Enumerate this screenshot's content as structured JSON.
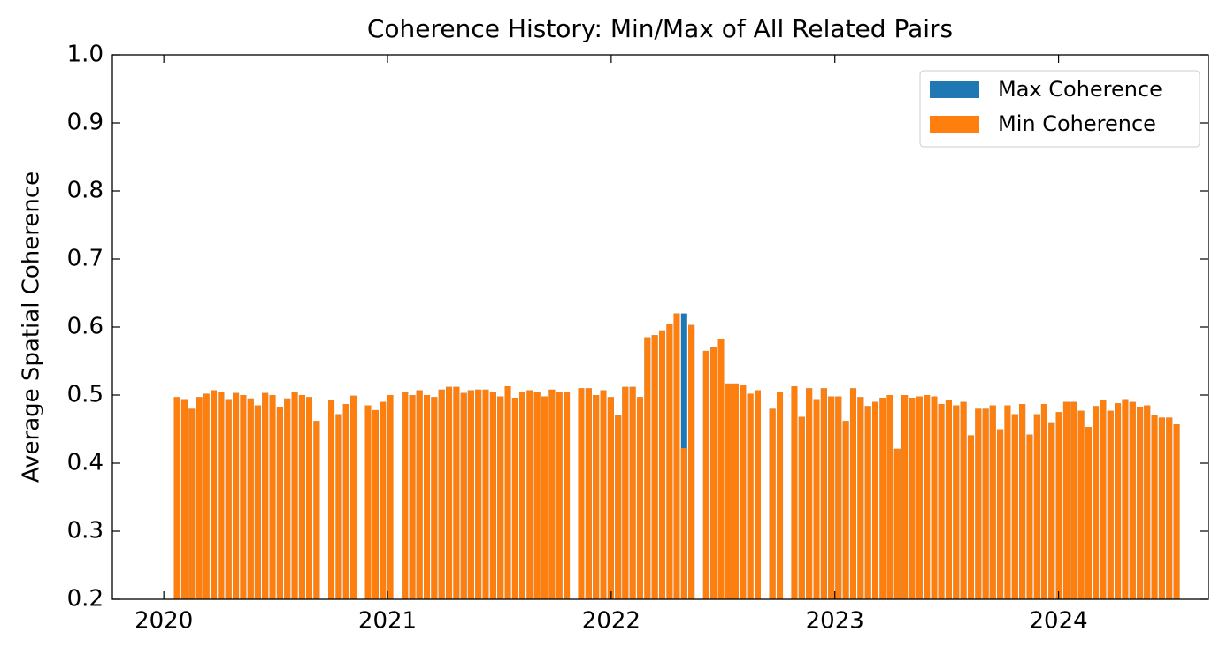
{
  "chart_data": {
    "type": "bar",
    "title": "Coherence History: Min/Max of All Related Pairs",
    "y_label": "Average Spatial Coherence",
    "x": [
      2020.059,
      2020.092,
      2020.125,
      2020.158,
      2020.19,
      2020.223,
      2020.256,
      2020.289,
      2020.322,
      2020.355,
      2020.388,
      2020.42,
      2020.453,
      2020.486,
      2020.519,
      2020.552,
      2020.585,
      2020.618,
      2020.65,
      2020.683,
      2020.749,
      2020.782,
      2020.815,
      2020.848,
      2020.913,
      2020.946,
      2020.979,
      2021.012,
      2021.078,
      2021.111,
      2021.143,
      2021.176,
      2021.209,
      2021.242,
      2021.275,
      2021.308,
      2021.341,
      2021.373,
      2021.406,
      2021.439,
      2021.472,
      2021.505,
      2021.538,
      2021.571,
      2021.603,
      2021.636,
      2021.669,
      2021.702,
      2021.735,
      2021.768,
      2021.801,
      2021.866,
      2021.899,
      2021.932,
      2021.965,
      2021.998,
      2022.031,
      2022.063,
      2022.096,
      2022.129,
      2022.162,
      2022.195,
      2022.228,
      2022.261,
      2022.293,
      2022.326,
      2022.359,
      2022.425,
      2022.458,
      2022.491,
      2022.524,
      2022.556,
      2022.589,
      2022.622,
      2022.655,
      2022.721,
      2022.754,
      2022.819,
      2022.852,
      2022.885,
      2022.918,
      2022.951,
      2022.984,
      2023.016,
      2023.049,
      2023.082,
      2023.115,
      2023.148,
      2023.181,
      2023.214,
      2023.246,
      2023.279,
      2023.312,
      2023.345,
      2023.378,
      2023.411,
      2023.444,
      2023.476,
      2023.509,
      2023.542,
      2023.575,
      2023.608,
      2023.641,
      2023.674,
      2023.706,
      2023.739,
      2023.772,
      2023.805,
      2023.838,
      2023.871,
      2023.904,
      2023.936,
      2023.969,
      2024.002,
      2024.035,
      2024.068,
      2024.101,
      2024.134,
      2024.166,
      2024.199,
      2024.232,
      2024.265,
      2024.298,
      2024.331,
      2024.364,
      2024.396,
      2024.429,
      2024.462,
      2024.495,
      2024.528
    ],
    "series": [
      {
        "name": "Max Coherence",
        "color": "#1f77b4",
        "values": [
          0.497,
          0.494,
          0.48,
          0.497,
          0.502,
          0.507,
          0.505,
          0.494,
          0.503,
          0.5,
          0.495,
          0.485,
          0.503,
          0.5,
          0.483,
          0.495,
          0.505,
          0.5,
          0.497,
          0.462,
          0.492,
          0.472,
          0.487,
          0.499,
          0.485,
          0.478,
          0.49,
          0.5,
          0.504,
          0.5,
          0.507,
          0.5,
          0.497,
          0.508,
          0.512,
          0.512,
          0.503,
          0.507,
          0.508,
          0.508,
          0.505,
          0.498,
          0.513,
          0.496,
          0.505,
          0.507,
          0.505,
          0.498,
          0.508,
          0.504,
          0.504,
          0.51,
          0.51,
          0.5,
          0.507,
          0.497,
          0.47,
          0.512,
          0.512,
          0.497,
          0.585,
          0.588,
          0.595,
          0.605,
          0.62,
          0.62,
          0.603,
          0.565,
          0.57,
          0.582,
          0.517,
          0.517,
          0.515,
          0.502,
          0.507,
          0.48,
          0.504,
          0.513,
          0.468,
          0.51,
          0.494,
          0.51,
          0.498,
          0.498,
          0.462,
          0.51,
          0.497,
          0.484,
          0.49,
          0.496,
          0.5,
          0.421,
          0.5,
          0.496,
          0.498,
          0.5,
          0.498,
          0.487,
          0.493,
          0.485,
          0.49,
          0.441,
          0.48,
          0.48,
          0.485,
          0.45,
          0.485,
          0.472,
          0.487,
          0.442,
          0.472,
          0.487,
          0.46,
          0.475,
          0.49,
          0.49,
          0.477,
          0.453,
          0.484,
          0.492,
          0.477,
          0.488,
          0.494,
          0.49,
          0.483,
          0.485,
          0.47,
          0.467,
          0.467,
          0.457
        ]
      },
      {
        "name": "Min Coherence",
        "color": "#ff7f0e",
        "values": [
          0.497,
          0.494,
          0.48,
          0.497,
          0.502,
          0.507,
          0.505,
          0.494,
          0.503,
          0.5,
          0.495,
          0.485,
          0.503,
          0.5,
          0.483,
          0.495,
          0.505,
          0.5,
          0.497,
          0.462,
          0.492,
          0.472,
          0.487,
          0.499,
          0.485,
          0.478,
          0.49,
          0.5,
          0.504,
          0.5,
          0.507,
          0.5,
          0.497,
          0.508,
          0.512,
          0.512,
          0.503,
          0.507,
          0.508,
          0.508,
          0.505,
          0.498,
          0.513,
          0.496,
          0.505,
          0.507,
          0.505,
          0.498,
          0.508,
          0.504,
          0.504,
          0.51,
          0.51,
          0.5,
          0.507,
          0.497,
          0.47,
          0.512,
          0.512,
          0.497,
          0.585,
          0.588,
          0.595,
          0.605,
          0.62,
          0.422,
          0.603,
          0.565,
          0.57,
          0.582,
          0.517,
          0.517,
          0.515,
          0.502,
          0.507,
          0.48,
          0.504,
          0.513,
          0.468,
          0.51,
          0.494,
          0.51,
          0.498,
          0.498,
          0.462,
          0.51,
          0.497,
          0.484,
          0.49,
          0.496,
          0.5,
          0.421,
          0.5,
          0.496,
          0.498,
          0.5,
          0.498,
          0.487,
          0.493,
          0.485,
          0.49,
          0.441,
          0.48,
          0.48,
          0.485,
          0.45,
          0.485,
          0.472,
          0.487,
          0.442,
          0.472,
          0.487,
          0.46,
          0.475,
          0.49,
          0.49,
          0.477,
          0.453,
          0.484,
          0.492,
          0.477,
          0.488,
          0.494,
          0.49,
          0.483,
          0.485,
          0.47,
          0.467,
          0.467,
          0.457
        ]
      }
    ],
    "xlim": [
      2019.77,
      2024.67
    ],
    "xticks": [
      2020,
      2021,
      2022,
      2023,
      2024
    ],
    "ylim": [
      0.2,
      1.0
    ],
    "yticks": [
      0.2,
      0.3,
      0.4,
      0.5,
      0.6,
      0.7,
      0.8,
      0.9,
      {
        "value": 1.0,
        "label": "1.0"
      }
    ],
    "legend": "upper right",
    "grid": false
  }
}
